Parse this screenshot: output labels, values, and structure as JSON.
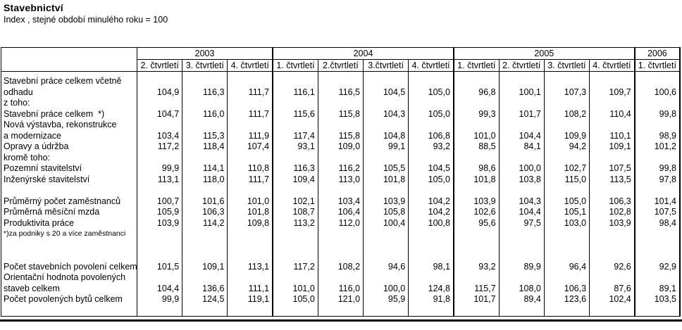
{
  "title": "Stavebnictví",
  "subtitle": "Index , stejné období minulého roku = 100",
  "table": {
    "corner_label": "",
    "year_groups": [
      {
        "label": "2003",
        "span": 3
      },
      {
        "label": "2004",
        "span": 4
      },
      {
        "label": "2005",
        "span": 4
      },
      {
        "label": "2006",
        "span": 1
      }
    ],
    "quarter_headers": [
      "2. čtvrtletí",
      "3. čtvrtletí",
      "4. čtvrtletí",
      "1. čtvrtletí",
      "2.čtvrtletí",
      "3.čtvrtletí",
      "4. čtvrtletí",
      "1. čtvrtletí",
      "2. čtvrtletí",
      "3. čtvrtletí",
      "4. čtvrtletí",
      "1. čtvrtletí"
    ],
    "rows": [
      {
        "type": "text",
        "label": "Stavební práce celkem včetně",
        "values": null
      },
      {
        "type": "data",
        "label": "odhadu",
        "values": [
          "104,9",
          "116,3",
          "111,7",
          "116,1",
          "116,5",
          "104,5",
          "105,0",
          "96,8",
          "100,1",
          "107,3",
          "109,7",
          "100,6"
        ]
      },
      {
        "type": "text",
        "label": "z toho:",
        "values": null
      },
      {
        "type": "data",
        "label": "Stavební práce celkem  *)",
        "values": [
          "104,7",
          "116,0",
          "111,7",
          "115,6",
          "115,8",
          "104,3",
          "105,0",
          "99,3",
          "101,7",
          "108,2",
          "110,4",
          "99,8"
        ]
      },
      {
        "type": "text",
        "label": "Nová výstavba, rekonstrukce",
        "values": null
      },
      {
        "type": "data",
        "label": "a modernizace",
        "values": [
          "103,4",
          "115,3",
          "111,9",
          "117,4",
          "115,8",
          "104,8",
          "106,8",
          "101,0",
          "104,4",
          "109,9",
          "110,1",
          "98,9"
        ]
      },
      {
        "type": "data",
        "label": "Opravy a údržba",
        "values": [
          "117,2",
          "118,4",
          "107,4",
          "93,1",
          "109,0",
          "99,1",
          "93,2",
          "88,5",
          "84,1",
          "94,2",
          "109,1",
          "101,2"
        ]
      },
      {
        "type": "text",
        "label": "kromě toho:",
        "values": null
      },
      {
        "type": "data",
        "label": "Pozemní stavitelství",
        "values": [
          "99,9",
          "114,1",
          "110,8",
          "116,3",
          "116,2",
          "105,5",
          "104,5",
          "98,6",
          "100,0",
          "102,7",
          "107,5",
          "99,8"
        ]
      },
      {
        "type": "data",
        "label": "Inženýrské stavitelství",
        "values": [
          "113,1",
          "118,0",
          "111,7",
          "109,4",
          "113,0",
          "101,8",
          "105,0",
          "101,8",
          "103,8",
          "115,0",
          "113,5",
          "97,8"
        ]
      },
      {
        "type": "blank",
        "label": "",
        "values": null
      },
      {
        "type": "data",
        "label": "Průměrný počet zaměstnanců",
        "values": [
          "100,7",
          "101,6",
          "101,0",
          "102,1",
          "103,4",
          "103,9",
          "104,2",
          "103,9",
          "104,3",
          "105,0",
          "106,3",
          "101,4"
        ]
      },
      {
        "type": "data",
        "label": "Průměrná měsíční mzda",
        "values": [
          "105,9",
          "106,3",
          "101,8",
          "108,7",
          "106,4",
          "105,8",
          "104,2",
          "102,6",
          "104,4",
          "105,1",
          "102,8",
          "107,5"
        ]
      },
      {
        "type": "data",
        "label": "Produktivita práce",
        "values": [
          "103,9",
          "114,2",
          "109,8",
          "113,2",
          "112,0",
          "100,4",
          "100,8",
          "95,6",
          "97,5",
          "103,0",
          "103,9",
          "98,4"
        ]
      },
      {
        "type": "footnote",
        "label": "*)za podniky s 20 a více zaměstnanci",
        "values": null
      },
      {
        "type": "blank",
        "label": "",
        "values": null
      },
      {
        "type": "blank",
        "label": "",
        "values": null
      },
      {
        "type": "data",
        "label": "Počet stavebních povolení celkem",
        "values": [
          "101,5",
          "109,1",
          "113,1",
          "117,2",
          "108,2",
          "94,6",
          "98,1",
          "93,2",
          "89,9",
          "96,4",
          "92,6",
          "92,9"
        ]
      },
      {
        "type": "text",
        "label": "Orientační hodnota povolených",
        "values": null
      },
      {
        "type": "data",
        "label": "staveb celkem",
        "values": [
          "104,4",
          "136,6",
          "111,1",
          "101,0",
          "116,0",
          "100,0",
          "124,8",
          "115,7",
          "108,0",
          "106,3",
          "87,6",
          "89,1"
        ]
      },
      {
        "type": "data",
        "label": "Počet povolených bytů celkem",
        "values": [
          "99,9",
          "124,5",
          "119,1",
          "105,0",
          "121,0",
          "95,9",
          "91,8",
          "101,7",
          "89,4",
          "123,6",
          "102,4",
          "103,5"
        ]
      }
    ]
  }
}
